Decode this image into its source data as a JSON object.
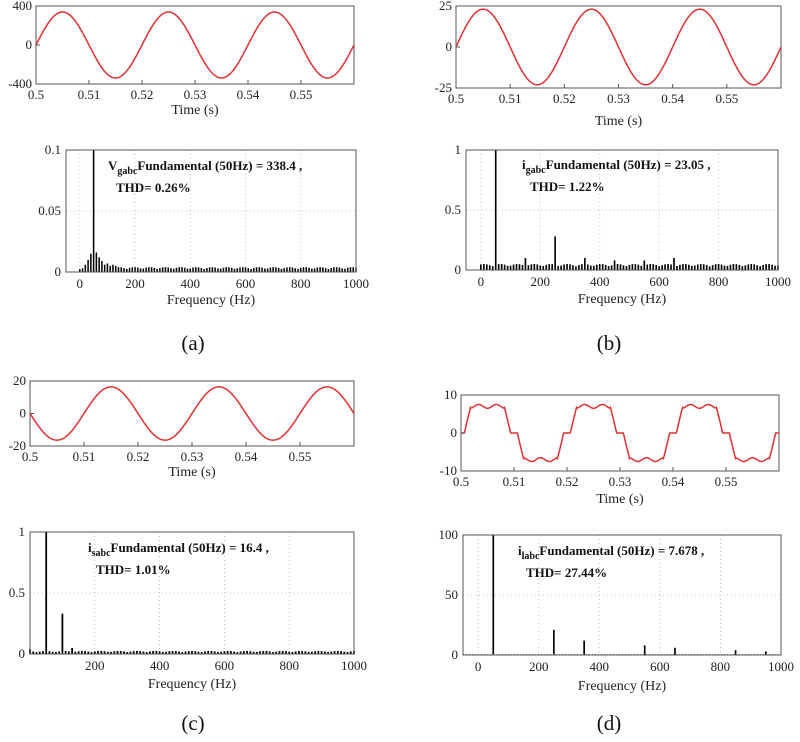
{
  "colors": {
    "waveform": "#e03030",
    "spectrum": "#000000",
    "axes": "#555555",
    "grid": "#b0b0b0"
  },
  "chart_data": [
    {
      "panel": "(a)",
      "time_plot": {
        "type": "line",
        "xlabel": "Time (s)",
        "xlim": [
          0.5,
          0.56
        ],
        "xticks": [
          "0.5",
          "0.51",
          "0.52",
          "0.53",
          "0.54",
          "0.55"
        ],
        "ylim": [
          -400,
          400
        ],
        "yticks": [
          "400",
          "0",
          "-400"
        ],
        "waveform": "sine",
        "amplitude": 338.4,
        "frequency_hz": 50,
        "phase_deg": 0
      },
      "spectrum": {
        "type": "bar",
        "xlabel": "Frequency (Hz)",
        "xlim": [
          -50,
          1000
        ],
        "xticks": [
          "0",
          "200",
          "400",
          "600",
          "800",
          "1000"
        ],
        "ylim": [
          0,
          0.1
        ],
        "yticks": [
          "0.1",
          "0.05",
          "0"
        ],
        "fundamental": 0.1,
        "harmonic_values": [
          [
            10,
            0.003
          ],
          [
            20,
            0.006
          ],
          [
            30,
            0.01
          ],
          [
            40,
            0.015
          ],
          [
            60,
            0.016
          ],
          [
            70,
            0.012
          ],
          [
            80,
            0.009
          ],
          [
            90,
            0.006
          ],
          [
            100,
            0.007
          ],
          [
            110,
            0.005
          ],
          [
            120,
            0.006
          ],
          [
            130,
            0.005
          ]
        ],
        "noise_floor": 0.004,
        "annotation": {
          "symbol": "V",
          "subscript": "gabc",
          "line1": "Fundamental (50Hz) = 338.4 ,",
          "line2": "THD= 0.26%"
        }
      }
    },
    {
      "panel": "(b)",
      "time_plot": {
        "type": "line",
        "xlabel": "Time (s)",
        "xlim": [
          0.5,
          0.56
        ],
        "xticks": [
          "0.5",
          "0.51",
          "0.52",
          "0.53",
          "0.54",
          "0.55"
        ],
        "ylim": [
          -25,
          25
        ],
        "yticks": [
          "25",
          "0",
          "-25"
        ],
        "waveform": "sine",
        "amplitude": 23.05,
        "frequency_hz": 50,
        "phase_deg": 0
      },
      "spectrum": {
        "type": "bar",
        "xlabel": "Frequency (Hz)",
        "xlim": [
          -50,
          1000
        ],
        "xticks": [
          "0",
          "200",
          "400",
          "600",
          "800",
          "1000"
        ],
        "ylim": [
          0,
          1
        ],
        "yticks": [
          "1",
          "0.5",
          "0"
        ],
        "fundamental": 1,
        "harmonic_values": [
          [
            250,
            0.28
          ],
          [
            150,
            0.1
          ],
          [
            350,
            0.1
          ],
          [
            650,
            0.1
          ],
          [
            450,
            0.08
          ],
          [
            550,
            0.08
          ]
        ],
        "noise_floor": 0.05,
        "annotation": {
          "symbol": "i",
          "subscript": "gabc",
          "line1": "Fundamental (50Hz) = 23.05 ,",
          "line2": "THD= 1.22%"
        }
      }
    },
    {
      "panel": "(c)",
      "time_plot": {
        "type": "line",
        "xlabel": "Time (s)",
        "xlim": [
          0.5,
          0.56
        ],
        "xticks": [
          "0.5",
          "0.51",
          "0.52",
          "0.53",
          "0.54",
          "0.55"
        ],
        "ylim": [
          -20,
          20
        ],
        "yticks": [
          "20",
          "0",
          "-20"
        ],
        "waveform": "sine",
        "amplitude": 16.4,
        "frequency_hz": 50,
        "phase_deg": 180
      },
      "spectrum": {
        "type": "bar",
        "xlabel": "Frequency (Hz)",
        "xlim": [
          0,
          1000
        ],
        "xticks": [
          "200",
          "400",
          "600",
          "800",
          "1000"
        ],
        "ylim": [
          0,
          1
        ],
        "yticks": [
          "1",
          "0.5",
          "0"
        ],
        "fundamental": 1,
        "harmonic_values": [
          [
            100,
            0.33
          ],
          [
            0,
            0.04
          ],
          [
            130,
            0.05
          ]
        ],
        "noise_floor": 0.025,
        "annotation": {
          "symbol": "i",
          "subscript": "sabc",
          "line1": "Fundamental (50Hz) = 16.4 ,",
          "line2": "THD= 1.01%"
        }
      }
    },
    {
      "panel": "(d)",
      "time_plot": {
        "type": "line",
        "xlabel": "Time (s)",
        "xlim": [
          0.5,
          0.56
        ],
        "xticks": [
          "0.5",
          "0.51",
          "0.52",
          "0.53",
          "0.54",
          "0.55"
        ],
        "ylim": [
          -10,
          10
        ],
        "yticks": [
          "10",
          "0",
          "-10"
        ],
        "waveform": "six-step",
        "amplitude": 7.678,
        "frequency_hz": 50,
        "phase_deg": 0
      },
      "spectrum": {
        "type": "bar",
        "xlabel": "Frequency (Hz)",
        "xlim": [
          -50,
          1000
        ],
        "xticks": [
          "0",
          "200",
          "400",
          "600",
          "800",
          "1000"
        ],
        "ylim": [
          0,
          100
        ],
        "yticks": [
          "100",
          "50",
          "0"
        ],
        "fundamental": 100,
        "harmonic_values": [
          [
            250,
            21
          ],
          [
            350,
            12
          ],
          [
            550,
            8
          ],
          [
            650,
            6
          ],
          [
            850,
            4
          ],
          [
            950,
            3
          ]
        ],
        "noise_floor": 0,
        "annotation": {
          "symbol": "i",
          "subscript": "labc",
          "line1": "Fundamental (50Hz) = 7.678 ,",
          "line2": "THD= 27.44%"
        }
      }
    }
  ]
}
